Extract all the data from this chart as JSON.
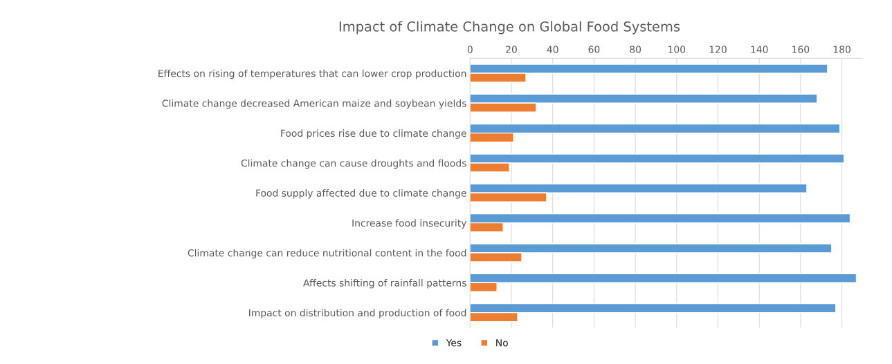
{
  "chart_data": {
    "type": "bar",
    "orientation": "horizontal",
    "title": "Impact of Climate Change on Global Food Systems",
    "categories": [
      "Effects on rising of temperatures that can lower crop production",
      "Climate change decreased American maize and soybean yields",
      "Food prices rise due to climate change",
      "Climate change can cause droughts and floods",
      "Food supply affected due to climate change",
      "Increase food insecurity",
      "Climate change can reduce nutritional content in the food",
      "Affects shifting of rainfall patterns",
      "Impact on distribution and production of food"
    ],
    "series": [
      {
        "name": "Yes",
        "color": "#5b9bd5",
        "values": [
          173,
          168,
          179,
          181,
          163,
          184,
          175,
          187,
          177
        ]
      },
      {
        "name": "No",
        "color": "#ed7d31",
        "values": [
          27,
          32,
          21,
          19,
          37,
          16,
          25,
          13,
          23
        ]
      }
    ],
    "xlim": [
      0,
      190
    ],
    "xticks": [
      0,
      20,
      40,
      60,
      80,
      100,
      120,
      140,
      160,
      180
    ],
    "grid": "x",
    "legend": "bottom"
  }
}
